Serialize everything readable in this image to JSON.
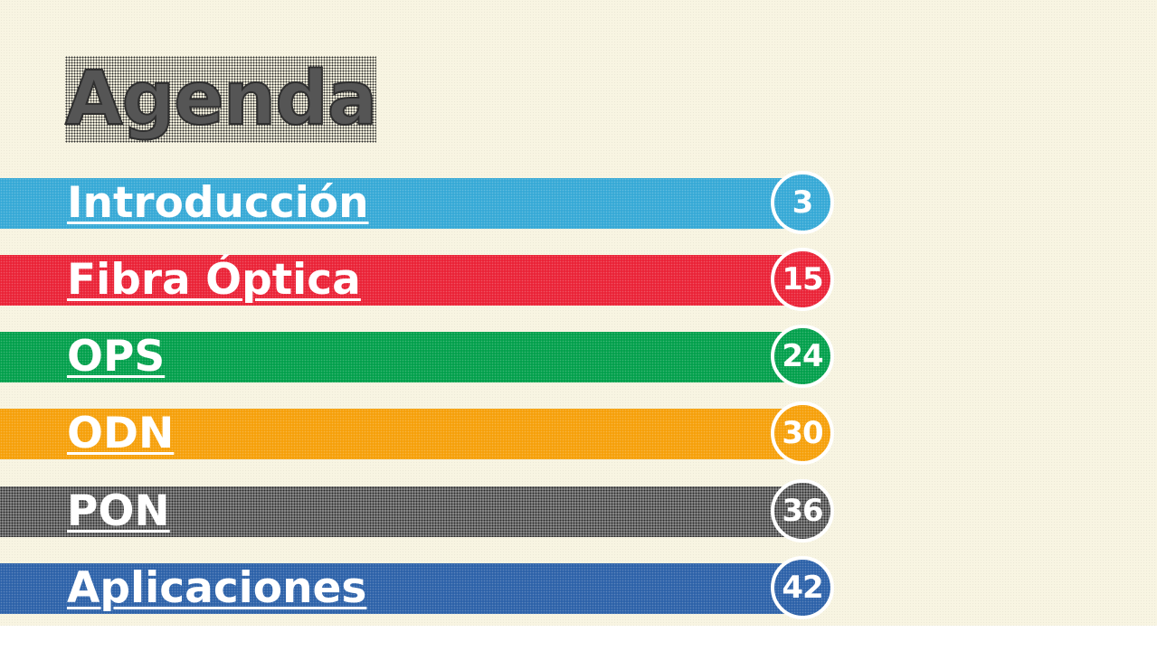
{
  "title": "Agenda",
  "items": [
    {
      "label": "Introducción",
      "page": "3",
      "color": "#36a9d6"
    },
    {
      "label": "Fibra Óptica",
      "page": "15",
      "color": "#ea2337"
    },
    {
      "label": "OPS",
      "page": "24",
      "color": "#03a04c"
    },
    {
      "label": "ODN",
      "page": "30",
      "color": "#f6a00a"
    },
    {
      "label": "PON",
      "page": "36",
      "color": "#8a8a8a"
    },
    {
      "label": "Aplicaciones",
      "page": "42",
      "color": "#2d62a9"
    }
  ]
}
